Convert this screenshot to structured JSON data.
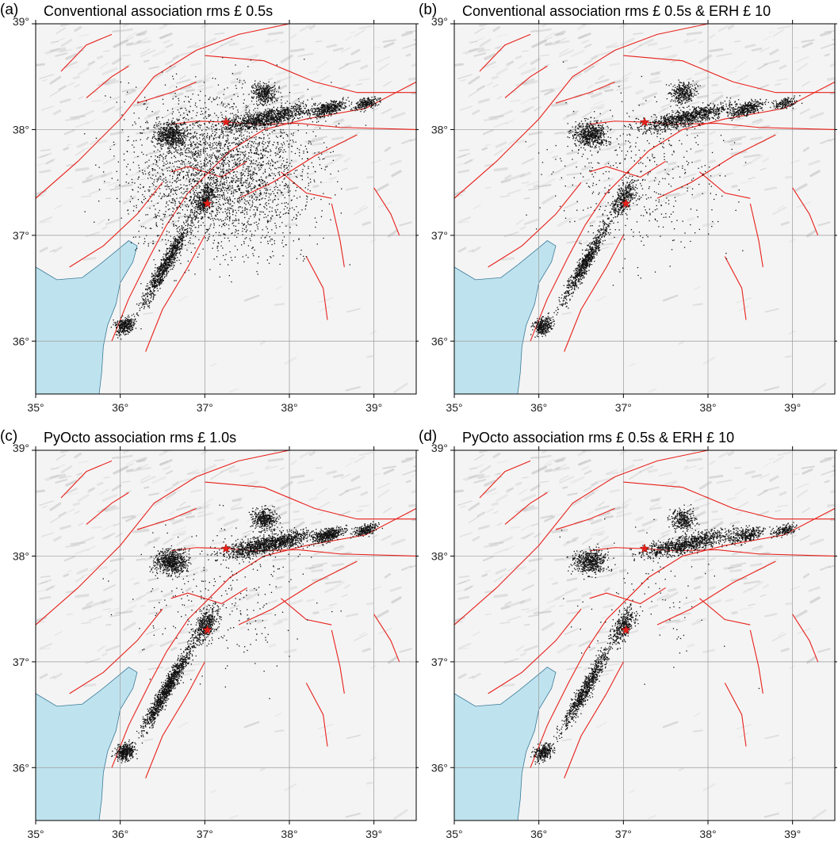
{
  "colors": {
    "sea": "#bfe3ee",
    "coast": "#3b7a9a",
    "fault": "#e8201a",
    "event": "#111111",
    "star": "#e8201a",
    "relief_light": "#f4f4f4",
    "relief_dark": "#b8b8b8",
    "frame": "#000000",
    "grid": "#9a9a9a"
  },
  "axes": {
    "lon_ticks": [
      "35°",
      "36°",
      "37°",
      "38°",
      "39°"
    ],
    "lat_ticks": [
      "39°",
      "38°",
      "37°",
      "36°"
    ],
    "lon_range": [
      35,
      39.5
    ],
    "lat_range": [
      35.5,
      39
    ]
  },
  "mainshocks": [
    {
      "lon": 37.25,
      "lat": 38.07
    },
    {
      "lon": 37.03,
      "lat": 37.3
    }
  ],
  "panels": [
    {
      "letter": "(a)",
      "title": "Conventional association rms £ 0.5s"
    },
    {
      "letter": "(b)",
      "title": "Conventional association rms £ 0.5s & ERH £ 10"
    },
    {
      "letter": "(c)",
      "title": "PyOcto association rms £ 1.0s"
    },
    {
      "letter": "(d)",
      "title": "PyOcto association rms £ 0.5s & ERH £ 10"
    }
  ]
}
